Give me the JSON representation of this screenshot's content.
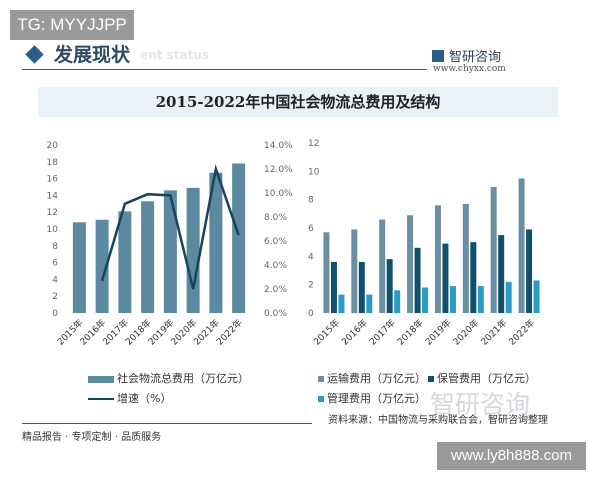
{
  "badge_top": "TG: MYYJJPP",
  "header": {
    "section_title": "发展现状",
    "section_subtitle_en": "ent status",
    "logo_name": "智研咨询",
    "logo_url": "www.chyxx.com"
  },
  "title": "2015-2022年中国社会物流总费用及结构",
  "colors": {
    "total_bar": "#5b8aa0",
    "growth_line": "#17445a",
    "transport": "#6a8fa3",
    "storage": "#124f6b",
    "management": "#2a9bc4",
    "title_band": "#e9f2f9"
  },
  "chart_data": [
    {
      "type": "bar+line",
      "categories": [
        "2015年",
        "2016年",
        "2017年",
        "2018年",
        "2019年",
        "2020年",
        "2021年",
        "2022年"
      ],
      "series": [
        {
          "name": "社会物流总费用（万亿元）",
          "type": "bar",
          "axis": "left",
          "values": [
            10.8,
            11.1,
            12.1,
            13.3,
            14.6,
            14.9,
            16.7,
            17.8
          ]
        },
        {
          "name": "增速（%）",
          "type": "line",
          "axis": "right",
          "values": [
            null,
            2.7,
            9.1,
            9.9,
            9.8,
            2.0,
            12.0,
            6.5
          ]
        }
      ],
      "left_axis": {
        "min": 0,
        "max": 20,
        "ticks": [
          "0",
          "2",
          "4",
          "6",
          "8",
          "10",
          "12",
          "14",
          "16",
          "18",
          "20"
        ]
      },
      "right_axis": {
        "min": 0,
        "max": 14,
        "ticks": [
          "0.0%",
          "2.0%",
          "4.0%",
          "6.0%",
          "8.0%",
          "10.0%",
          "12.0%",
          "14.0%"
        ]
      },
      "grid": false,
      "legend": "bottom"
    },
    {
      "type": "bar",
      "categories": [
        "2015年",
        "2016年",
        "2017年",
        "2018年",
        "2019年",
        "2020年",
        "2021年",
        "2022年"
      ],
      "series": [
        {
          "name": "运输费用（万亿元）",
          "values": [
            5.7,
            5.9,
            6.6,
            6.9,
            7.6,
            7.7,
            8.9,
            9.5
          ]
        },
        {
          "name": "保管费用（万亿元）",
          "values": [
            3.6,
            3.6,
            3.8,
            4.6,
            4.9,
            5.0,
            5.5,
            5.9
          ]
        },
        {
          "name": "管理费用（万亿元）",
          "values": [
            1.3,
            1.3,
            1.6,
            1.8,
            1.9,
            1.9,
            2.2,
            2.3
          ]
        }
      ],
      "y_axis": {
        "min": 0,
        "max": 12,
        "ticks": [
          "0",
          "2",
          "4",
          "6",
          "8",
          "10",
          "12"
        ]
      },
      "grid": false,
      "legend": "bottom"
    }
  ],
  "footer": {
    "slogan": "精品报告 · 专项定制 · 品质服务",
    "source": "资料来源：中国物流与采购联合会，智研咨询整理",
    "watermark": "智研咨询"
  },
  "badge_bottom": "www.ly8h888.com"
}
